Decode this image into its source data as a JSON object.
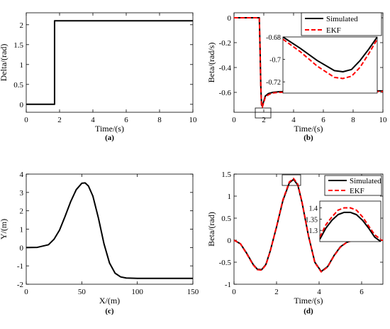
{
  "chart_data": [
    {
      "id": "a",
      "type": "line",
      "caption": "(a)",
      "xlabel": "Time/(s)",
      "ylabel": "Delta/(rad)",
      "xlim": [
        0,
        10
      ],
      "ylim": [
        -0.2,
        2.3
      ],
      "xticks": [
        0,
        2,
        4,
        6,
        8,
        10
      ],
      "yticks": [
        0,
        0.5,
        1,
        1.5,
        2
      ],
      "grid": false,
      "series": [
        {
          "name": "",
          "color": "#000000",
          "dash": "solid",
          "x": [
            0,
            1.7,
            1.7,
            10
          ],
          "y": [
            0,
            0,
            2.1,
            2.1
          ]
        }
      ]
    },
    {
      "id": "b",
      "type": "line",
      "caption": "(b)",
      "xlabel": "Time/(s)",
      "ylabel": "Beta/(rad/s)",
      "xlim": [
        0,
        10
      ],
      "ylim": [
        -0.76,
        0.04
      ],
      "xticks": [
        0,
        2,
        4,
        6,
        8,
        10
      ],
      "yticks": [
        0,
        -0.2,
        -0.4,
        -0.6
      ],
      "grid": false,
      "legend_placement": "top-right",
      "series": [
        {
          "name": "Simulated",
          "color": "#000000",
          "dash": "solid",
          "x": [
            0,
            1.7,
            1.75,
            1.8,
            1.85,
            1.9,
            2.0,
            2.1,
            2.3,
            2.6,
            3.0,
            4.0,
            6.0,
            8.0,
            10.0
          ],
          "y": [
            0,
            0,
            -0.25,
            -0.55,
            -0.7,
            -0.71,
            -0.67,
            -0.63,
            -0.61,
            -0.6,
            -0.595,
            -0.59,
            -0.589,
            -0.588,
            -0.588
          ]
        },
        {
          "name": "EKF",
          "color": "#ff0000",
          "dash": "dashed",
          "x": [
            0,
            1.7,
            1.75,
            1.8,
            1.85,
            1.9,
            2.0,
            2.1,
            2.3,
            2.6,
            3.0,
            4.0,
            6.0,
            8.0,
            10.0
          ],
          "y": [
            0,
            0,
            -0.25,
            -0.56,
            -0.71,
            -0.72,
            -0.68,
            -0.64,
            -0.62,
            -0.605,
            -0.6,
            -0.595,
            -0.594,
            -0.593,
            -0.593
          ]
        }
      ],
      "inset": {
        "xlim": [
          1.6,
          2.15
        ],
        "ylim": [
          -0.73,
          -0.68
        ],
        "yticks": [
          -0.68,
          -0.7,
          -0.72
        ],
        "series": [
          {
            "name": "Simulated",
            "color": "#000000",
            "dash": "solid",
            "x": [
              1.6,
              1.7,
              1.8,
              1.9,
              1.95,
              2.0,
              2.05,
              2.1,
              2.15
            ],
            "y": [
              -0.68,
              -0.69,
              -0.701,
              -0.71,
              -0.711,
              -0.709,
              -0.701,
              -0.691,
              -0.68
            ]
          },
          {
            "name": "EKF",
            "color": "#ff0000",
            "dash": "dashed",
            "x": [
              1.6,
              1.7,
              1.8,
              1.9,
              1.95,
              2.0,
              2.05,
              2.1,
              2.15
            ],
            "y": [
              -0.682,
              -0.693,
              -0.706,
              -0.716,
              -0.717,
              -0.715,
              -0.707,
              -0.695,
              -0.682
            ]
          }
        ]
      }
    },
    {
      "id": "c",
      "type": "line",
      "caption": "(c)",
      "xlabel": "X/(m)",
      "ylabel": "Y/(m)",
      "xlim": [
        0,
        150
      ],
      "ylim": [
        -2,
        4
      ],
      "xticks": [
        0,
        50,
        100,
        150
      ],
      "yticks": [
        -2,
        -1,
        0,
        1,
        2,
        3,
        4
      ],
      "grid": false,
      "series": [
        {
          "name": "",
          "color": "#000000",
          "dash": "solid",
          "x": [
            0,
            10,
            20,
            25,
            30,
            35,
            40,
            45,
            50,
            53,
            56,
            60,
            65,
            70,
            75,
            80,
            85,
            90,
            100,
            120,
            150
          ],
          "y": [
            0,
            0.01,
            0.15,
            0.45,
            0.95,
            1.7,
            2.5,
            3.15,
            3.5,
            3.52,
            3.35,
            2.8,
            1.6,
            0.2,
            -0.85,
            -1.4,
            -1.6,
            -1.66,
            -1.68,
            -1.68,
            -1.68
          ]
        }
      ]
    },
    {
      "id": "d",
      "type": "line",
      "caption": "(d)",
      "xlabel": "Time/(s)",
      "ylabel": "Beta/(rad)",
      "xlim": [
        0,
        7
      ],
      "ylim": [
        -1,
        1.5
      ],
      "xticks": [
        0,
        2,
        4,
        6
      ],
      "yticks": [
        -1,
        -0.5,
        0,
        0.5,
        1,
        1.5
      ],
      "grid": false,
      "legend_placement": "top-right",
      "series": [
        {
          "name": "Simulated",
          "color": "#000000",
          "dash": "solid",
          "x": [
            0,
            0.3,
            0.6,
            0.9,
            1.1,
            1.3,
            1.5,
            1.7,
            2.0,
            2.3,
            2.6,
            2.8,
            3.0,
            3.2,
            3.5,
            3.8,
            4.1,
            4.4,
            4.7,
            5.0,
            5.3,
            5.6,
            6.0,
            6.5,
            7.0
          ],
          "y": [
            0,
            -0.08,
            -0.3,
            -0.55,
            -0.66,
            -0.67,
            -0.55,
            -0.25,
            0.3,
            0.9,
            1.3,
            1.38,
            1.25,
            0.85,
            0.1,
            -0.5,
            -0.71,
            -0.6,
            -0.35,
            -0.15,
            -0.05,
            0,
            0,
            0,
            0
          ]
        },
        {
          "name": "EKF",
          "color": "#ff0000",
          "dash": "dashed",
          "x": [
            0,
            0.3,
            0.6,
            0.9,
            1.1,
            1.3,
            1.5,
            1.7,
            2.0,
            2.3,
            2.6,
            2.8,
            3.0,
            3.2,
            3.5,
            3.8,
            4.1,
            4.4,
            4.7,
            5.0,
            5.3,
            5.6,
            6.0,
            6.5,
            7.0
          ],
          "y": [
            0,
            -0.08,
            -0.31,
            -0.56,
            -0.67,
            -0.68,
            -0.56,
            -0.26,
            0.31,
            0.92,
            1.32,
            1.4,
            1.27,
            0.86,
            0.1,
            -0.51,
            -0.72,
            -0.61,
            -0.36,
            -0.16,
            -0.05,
            0,
            0,
            0,
            0
          ]
        }
      ],
      "inset": {
        "xlim": [
          2.55,
          3.05
        ],
        "ylim": [
          1.25,
          1.43
        ],
        "yticks": [
          1.3,
          1.35,
          1.4
        ],
        "series": [
          {
            "name": "Simulated",
            "color": "#000000",
            "dash": "solid",
            "x": [
              2.55,
              2.6,
              2.65,
              2.7,
              2.75,
              2.8,
              2.85,
              2.9,
              2.95,
              3.0,
              3.05
            ],
            "y": [
              1.26,
              1.31,
              1.345,
              1.37,
              1.38,
              1.38,
              1.37,
              1.345,
              1.31,
              1.27,
              1.25
            ]
          },
          {
            "name": "EKF",
            "color": "#ff0000",
            "dash": "dashed",
            "x": [
              2.55,
              2.6,
              2.65,
              2.7,
              2.75,
              2.8,
              2.85,
              2.9,
              2.95,
              3.0,
              3.05
            ],
            "y": [
              1.27,
              1.325,
              1.36,
              1.39,
              1.4,
              1.4,
              1.39,
              1.36,
              1.32,
              1.28,
              1.26
            ]
          }
        ]
      }
    }
  ]
}
